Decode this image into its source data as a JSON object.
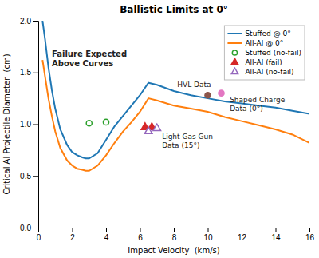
{
  "chart_data": {
    "type": "line",
    "title": "Ballistic Limits at 0°",
    "x_label": "Impact Velocity  (km/s)",
    "y_label": "Critical Al Projectile Diameter  (cm)",
    "xlim": [
      0,
      16
    ],
    "ylim": [
      0,
      2
    ],
    "xticks": [
      0,
      2,
      4,
      6,
      8,
      10,
      12,
      14,
      16
    ],
    "yticks": [
      {
        "value": 0,
        "label": "0.0"
      },
      0.5,
      {
        "value": 1.0,
        "label": "1.0"
      },
      1.5,
      {
        "value": 2.0,
        "label": "2.0"
      }
    ],
    "grid": false,
    "legend": "upper right",
    "series": [
      {
        "name": "Stuffed @ 0°",
        "type": "line",
        "line_style": "solid",
        "x": [
          0.25,
          0.4,
          0.6,
          0.8,
          1.0,
          1.3,
          1.7,
          2.0,
          2.3,
          2.6,
          2.8,
          3.0,
          3.5,
          4.0,
          4.5,
          5.0,
          5.5,
          6.0,
          6.5,
          7.0,
          8.0,
          9.0,
          10.0,
          11.0,
          12.0,
          13.0,
          14.0,
          15.0,
          16.0
        ],
        "values": [
          2.0,
          1.82,
          1.55,
          1.33,
          1.15,
          0.95,
          0.8,
          0.73,
          0.7,
          0.68,
          0.67,
          0.67,
          0.72,
          0.85,
          0.98,
          1.08,
          1.18,
          1.28,
          1.4,
          1.38,
          1.32,
          1.28,
          1.25,
          1.22,
          1.2,
          1.18,
          1.16,
          1.13,
          1.1
        ]
      },
      {
        "name": "All-Al @ 0°",
        "type": "line",
        "line_style": "solid",
        "x": [
          0.25,
          0.4,
          0.6,
          0.8,
          1.0,
          1.3,
          1.7,
          2.0,
          2.3,
          2.6,
          2.8,
          3.0,
          3.5,
          4.0,
          4.5,
          5.0,
          5.5,
          6.0,
          6.5,
          7.0,
          8.0,
          9.0,
          10.0,
          11.0,
          12.0,
          13.0,
          14.0,
          15.0,
          16.0
        ],
        "values": [
          1.62,
          1.46,
          1.25,
          1.08,
          0.93,
          0.77,
          0.65,
          0.6,
          0.57,
          0.56,
          0.55,
          0.55,
          0.6,
          0.7,
          0.82,
          0.93,
          1.02,
          1.12,
          1.25,
          1.23,
          1.18,
          1.15,
          1.12,
          1.07,
          1.03,
          0.99,
          0.95,
          0.9,
          0.82
        ]
      },
      {
        "name": "Stuffed (no-fail)",
        "type": "scatter",
        "marker": "circle-open",
        "x": [
          3.0,
          4.0
        ],
        "values": [
          1.01,
          1.02
        ]
      },
      {
        "name": "All-Al (fail)",
        "type": "scatter",
        "marker": "triangle",
        "x": [
          6.3,
          6.7
        ],
        "values": [
          0.97,
          0.97
        ]
      },
      {
        "name": "All-Al (no-fail)",
        "type": "scatter",
        "marker": "triangle-open",
        "x": [
          6.5,
          7.0
        ],
        "values": [
          0.93,
          0.96
        ]
      },
      {
        "type": "scatter",
        "marker": "circle",
        "x": [
          10.0
        ],
        "values": [
          1.28
        ]
      },
      {
        "type": "scatter",
        "marker": "circle",
        "x": [
          10.8
        ],
        "values": [
          1.3
        ]
      }
    ],
    "annotations": [
      {
        "text": "Failure Expected\nAbove Curves",
        "x": 0.8,
        "y": 1.72
      },
      {
        "text": "Light Gas Gun\nData (15°)",
        "x": 7.3,
        "y": 0.92
      },
      {
        "text": "HVL Data",
        "x": 8.2,
        "y": 1.34
      },
      {
        "text": "Shaped Charge\nData (0°)",
        "x": 11.3,
        "y": 1.28
      }
    ]
  }
}
